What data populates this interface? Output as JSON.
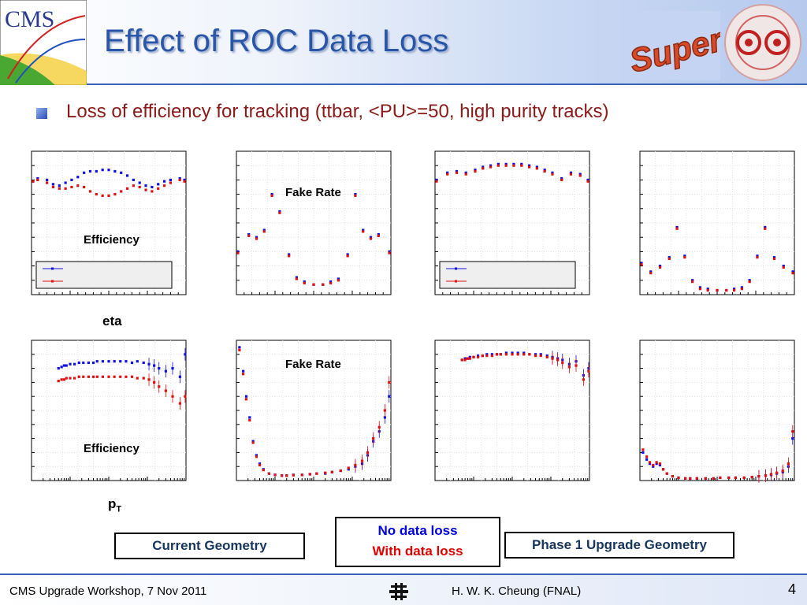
{
  "title": "Effect of ROC Data Loss",
  "subtitle": "Loss of efficiency for tracking (ttbar, <PU>=50, high purity tracks)",
  "labels": {
    "efficiency": "Efficiency",
    "fake_rate": "Fake Rate",
    "eta": "eta",
    "pt_main": "p",
    "pt_sub": "T"
  },
  "boxes": {
    "current": "Current Geometry",
    "phase1": "Phase 1 Upgrade Geometry"
  },
  "legend": {
    "no_loss": "No data loss",
    "with_loss": "With data loss"
  },
  "footer": {
    "left": "CMS Upgrade Workshop, 7 Nov 2011",
    "right": "H. W. K. Cheung (FNAL)",
    "page": "4"
  },
  "logos": {
    "cms": "CMS",
    "super": "Super"
  },
  "colors": {
    "no_loss": "#1010e0",
    "with_loss": "#e01010",
    "title": "#2a56a8",
    "subtitle": "#8b1a1a"
  },
  "chart_data": [
    {
      "id": "cur-eff-eta",
      "type": "scatter",
      "title": "Efficiency",
      "xlabel": "eta",
      "xscale": "linear",
      "xlim": [
        -2.5,
        2.5
      ],
      "ylim": [
        0,
        1
      ],
      "legend": "bottom",
      "series": [
        {
          "name": "No data loss",
          "x": [
            -2.45,
            -2.3,
            -2.0,
            -1.8,
            -1.6,
            -1.4,
            -1.2,
            -1.0,
            -0.8,
            -0.6,
            -0.4,
            -0.2,
            0.0,
            0.2,
            0.4,
            0.6,
            0.8,
            1.0,
            1.2,
            1.4,
            1.6,
            1.8,
            2.0,
            2.3,
            2.45
          ],
          "y": [
            0.79,
            0.81,
            0.8,
            0.77,
            0.76,
            0.78,
            0.8,
            0.82,
            0.85,
            0.86,
            0.86,
            0.87,
            0.87,
            0.86,
            0.85,
            0.83,
            0.8,
            0.78,
            0.76,
            0.75,
            0.77,
            0.79,
            0.8,
            0.81,
            0.8
          ]
        },
        {
          "name": "With data loss",
          "x": [
            -2.45,
            -2.3,
            -2.0,
            -1.8,
            -1.6,
            -1.4,
            -1.2,
            -1.0,
            -0.8,
            -0.6,
            -0.4,
            -0.2,
            0.0,
            0.2,
            0.4,
            0.6,
            0.8,
            1.0,
            1.2,
            1.4,
            1.6,
            1.8,
            2.0,
            2.3,
            2.45
          ],
          "y": [
            0.79,
            0.8,
            0.78,
            0.75,
            0.74,
            0.74,
            0.75,
            0.76,
            0.75,
            0.72,
            0.7,
            0.69,
            0.69,
            0.7,
            0.72,
            0.74,
            0.76,
            0.75,
            0.73,
            0.72,
            0.74,
            0.76,
            0.78,
            0.8,
            0.79
          ]
        }
      ]
    },
    {
      "id": "cur-fake-eta",
      "type": "scatter",
      "title": "Fake Rate",
      "xlabel": "",
      "xscale": "linear",
      "xlim": [
        -2.5,
        2.5
      ],
      "ylim": [
        0,
        1
      ],
      "series": [
        {
          "name": "No data loss",
          "x": [
            -2.45,
            -2.1,
            -1.85,
            -1.6,
            -1.35,
            -1.1,
            -0.8,
            -0.55,
            -0.3,
            0.0,
            0.3,
            0.55,
            0.8,
            1.1,
            1.35,
            1.6,
            1.85,
            2.1,
            2.45
          ],
          "y": [
            0.3,
            0.42,
            0.4,
            0.45,
            0.7,
            0.58,
            0.28,
            0.12,
            0.09,
            0.07,
            0.07,
            0.09,
            0.11,
            0.28,
            0.7,
            0.45,
            0.4,
            0.42,
            0.3
          ]
        },
        {
          "name": "With data loss",
          "x": [
            -2.45,
            -2.1,
            -1.85,
            -1.6,
            -1.35,
            -1.1,
            -0.8,
            -0.55,
            -0.3,
            0.0,
            0.3,
            0.55,
            0.8,
            1.1,
            1.35,
            1.6,
            1.85,
            2.1,
            2.45
          ],
          "y": [
            0.29,
            0.41,
            0.39,
            0.44,
            0.69,
            0.57,
            0.27,
            0.11,
            0.08,
            0.07,
            0.07,
            0.08,
            0.1,
            0.27,
            0.69,
            0.44,
            0.39,
            0.41,
            0.29
          ]
        }
      ]
    },
    {
      "id": "ph1-eff-eta",
      "type": "scatter",
      "title": "",
      "xlabel": "",
      "xscale": "linear",
      "xlim": [
        -2.5,
        2.5
      ],
      "ylim": [
        0,
        1
      ],
      "legend": "bottom",
      "series": [
        {
          "name": "No data loss",
          "x": [
            -2.45,
            -2.1,
            -1.8,
            -1.5,
            -1.2,
            -0.95,
            -0.7,
            -0.45,
            -0.2,
            0.05,
            0.3,
            0.55,
            0.8,
            1.05,
            1.3,
            1.6,
            1.9,
            2.2,
            2.45
          ],
          "y": [
            0.8,
            0.85,
            0.86,
            0.85,
            0.87,
            0.89,
            0.9,
            0.91,
            0.91,
            0.91,
            0.91,
            0.9,
            0.89,
            0.87,
            0.85,
            0.81,
            0.85,
            0.84,
            0.8
          ]
        },
        {
          "name": "With data loss",
          "x": [
            -2.45,
            -2.1,
            -1.8,
            -1.5,
            -1.2,
            -0.95,
            -0.7,
            -0.45,
            -0.2,
            0.05,
            0.3,
            0.55,
            0.8,
            1.05,
            1.3,
            1.6,
            1.9,
            2.2,
            2.45
          ],
          "y": [
            0.79,
            0.84,
            0.85,
            0.84,
            0.86,
            0.88,
            0.89,
            0.9,
            0.9,
            0.9,
            0.9,
            0.89,
            0.88,
            0.86,
            0.84,
            0.8,
            0.84,
            0.83,
            0.79
          ]
        }
      ]
    },
    {
      "id": "ph1-fake-eta",
      "type": "scatter",
      "title": "",
      "xlabel": "",
      "xscale": "linear",
      "xlim": [
        -2.5,
        2.5
      ],
      "ylim": [
        0,
        1
      ],
      "series": [
        {
          "name": "No data loss",
          "x": [
            -2.45,
            -2.15,
            -1.85,
            -1.55,
            -1.3,
            -1.05,
            -0.8,
            -0.55,
            -0.3,
            0.0,
            0.3,
            0.55,
            0.8,
            1.05,
            1.3,
            1.55,
            1.85,
            2.15,
            2.45
          ],
          "y": [
            0.22,
            0.16,
            0.2,
            0.26,
            0.47,
            0.27,
            0.1,
            0.05,
            0.04,
            0.03,
            0.03,
            0.04,
            0.05,
            0.1,
            0.27,
            0.47,
            0.26,
            0.2,
            0.16
          ]
        },
        {
          "name": "With data loss",
          "x": [
            -2.45,
            -2.15,
            -1.85,
            -1.55,
            -1.3,
            -1.05,
            -0.8,
            -0.55,
            -0.3,
            0.0,
            0.3,
            0.55,
            0.8,
            1.05,
            1.3,
            1.55,
            1.85,
            2.15,
            2.45
          ],
          "y": [
            0.21,
            0.15,
            0.19,
            0.25,
            0.46,
            0.26,
            0.09,
            0.04,
            0.03,
            0.03,
            0.03,
            0.03,
            0.04,
            0.09,
            0.26,
            0.46,
            0.25,
            0.19,
            0.15
          ]
        }
      ]
    },
    {
      "id": "cur-eff-pt",
      "type": "scatter",
      "title": "Efficiency",
      "xlabel": "pT",
      "xscale": "log",
      "xlim": [
        0.1,
        1000
      ],
      "ylim": [
        0,
        1
      ],
      "series": [
        {
          "name": "No data loss",
          "x": [
            0.5,
            0.6,
            0.7,
            0.8,
            1,
            1.3,
            1.7,
            2.2,
            3,
            4,
            5,
            7,
            10,
            14,
            20,
            28,
            40,
            55,
            80,
            110,
            150,
            200,
            300,
            450,
            700,
            950
          ],
          "y": [
            0.8,
            0.81,
            0.82,
            0.82,
            0.83,
            0.83,
            0.84,
            0.84,
            0.84,
            0.84,
            0.85,
            0.85,
            0.85,
            0.85,
            0.85,
            0.85,
            0.84,
            0.85,
            0.84,
            0.83,
            0.82,
            0.8,
            0.78,
            0.8,
            0.74,
            0.9
          ]
        },
        {
          "name": "With data loss",
          "x": [
            0.5,
            0.6,
            0.7,
            0.8,
            1,
            1.3,
            1.7,
            2.2,
            3,
            4,
            5,
            7,
            10,
            14,
            20,
            28,
            40,
            55,
            80,
            110,
            150,
            200,
            300,
            450,
            700,
            950
          ],
          "y": [
            0.71,
            0.72,
            0.72,
            0.73,
            0.73,
            0.73,
            0.74,
            0.74,
            0.74,
            0.74,
            0.74,
            0.74,
            0.74,
            0.74,
            0.74,
            0.74,
            0.74,
            0.73,
            0.73,
            0.72,
            0.7,
            0.67,
            0.64,
            0.6,
            0.55,
            0.6
          ]
        }
      ]
    },
    {
      "id": "cur-fake-pt",
      "type": "scatter",
      "title": "Fake Rate",
      "xlabel": "",
      "xscale": "log",
      "xlim": [
        0.1,
        1000
      ],
      "ylim": [
        0,
        1
      ],
      "series": [
        {
          "name": "No data loss",
          "x": [
            0.12,
            0.15,
            0.18,
            0.22,
            0.27,
            0.33,
            0.4,
            0.5,
            0.7,
            1,
            1.5,
            2,
            3,
            5,
            8,
            12,
            20,
            30,
            50,
            80,
            120,
            180,
            250,
            350,
            500,
            700,
            900
          ],
          "y": [
            0.95,
            0.78,
            0.6,
            0.45,
            0.28,
            0.18,
            0.12,
            0.08,
            0.05,
            0.04,
            0.035,
            0.035,
            0.04,
            0.04,
            0.045,
            0.05,
            0.05,
            0.06,
            0.07,
            0.08,
            0.1,
            0.12,
            0.18,
            0.28,
            0.35,
            0.45,
            0.6
          ]
        },
        {
          "name": "With data loss",
          "x": [
            0.12,
            0.15,
            0.18,
            0.22,
            0.27,
            0.33,
            0.4,
            0.5,
            0.7,
            1,
            1.5,
            2,
            3,
            5,
            8,
            12,
            20,
            30,
            50,
            80,
            120,
            180,
            250,
            350,
            500,
            700,
            900
          ],
          "y": [
            0.93,
            0.76,
            0.58,
            0.43,
            0.27,
            0.17,
            0.11,
            0.075,
            0.05,
            0.04,
            0.035,
            0.035,
            0.038,
            0.04,
            0.045,
            0.05,
            0.055,
            0.06,
            0.07,
            0.09,
            0.11,
            0.14,
            0.2,
            0.3,
            0.38,
            0.5,
            0.7
          ]
        }
      ]
    },
    {
      "id": "ph1-eff-pt",
      "type": "scatter",
      "title": "",
      "xlabel": "",
      "xscale": "log",
      "xlim": [
        0.1,
        1000
      ],
      "ylim": [
        0,
        1
      ],
      "series": [
        {
          "name": "No data loss",
          "x": [
            0.5,
            0.6,
            0.7,
            0.8,
            1,
            1.3,
            1.7,
            2.2,
            3,
            4,
            5,
            7,
            10,
            14,
            20,
            28,
            40,
            55,
            80,
            110,
            150,
            200,
            300,
            450,
            700,
            950
          ],
          "y": [
            0.86,
            0.87,
            0.87,
            0.88,
            0.88,
            0.89,
            0.89,
            0.9,
            0.9,
            0.9,
            0.9,
            0.91,
            0.91,
            0.91,
            0.91,
            0.9,
            0.9,
            0.9,
            0.89,
            0.88,
            0.87,
            0.86,
            0.83,
            0.85,
            0.75,
            0.8
          ]
        },
        {
          "name": "With data loss",
          "x": [
            0.5,
            0.6,
            0.7,
            0.8,
            1,
            1.3,
            1.7,
            2.2,
            3,
            4,
            5,
            7,
            10,
            14,
            20,
            28,
            40,
            55,
            80,
            110,
            150,
            200,
            300,
            450,
            700,
            950
          ],
          "y": [
            0.86,
            0.86,
            0.87,
            0.87,
            0.88,
            0.88,
            0.89,
            0.89,
            0.89,
            0.9,
            0.9,
            0.9,
            0.9,
            0.9,
            0.9,
            0.9,
            0.89,
            0.89,
            0.88,
            0.87,
            0.86,
            0.84,
            0.81,
            0.82,
            0.72,
            0.78
          ]
        }
      ]
    },
    {
      "id": "ph1-fake-pt",
      "type": "scatter",
      "title": "",
      "xlabel": "",
      "xscale": "log",
      "xlim": [
        0.1,
        1000
      ],
      "ylim": [
        0,
        1
      ],
      "series": [
        {
          "name": "No data loss",
          "x": [
            0.12,
            0.15,
            0.18,
            0.22,
            0.27,
            0.33,
            0.4,
            0.5,
            0.7,
            1,
            1.5,
            2,
            3,
            5,
            8,
            12,
            20,
            30,
            50,
            80,
            120,
            180,
            250,
            350,
            500,
            700,
            900
          ],
          "y": [
            0.2,
            0.15,
            0.12,
            0.1,
            0.12,
            0.11,
            0.08,
            0.05,
            0.03,
            0.02,
            0.015,
            0.015,
            0.015,
            0.015,
            0.015,
            0.02,
            0.02,
            0.02,
            0.02,
            0.025,
            0.03,
            0.035,
            0.04,
            0.05,
            0.06,
            0.1,
            0.3
          ]
        },
        {
          "name": "With data loss",
          "x": [
            0.12,
            0.15,
            0.18,
            0.22,
            0.27,
            0.33,
            0.4,
            0.5,
            0.7,
            1,
            1.5,
            2,
            3,
            5,
            8,
            12,
            20,
            30,
            50,
            80,
            120,
            180,
            250,
            350,
            500,
            700,
            900
          ],
          "y": [
            0.22,
            0.17,
            0.13,
            0.11,
            0.13,
            0.12,
            0.08,
            0.05,
            0.03,
            0.02,
            0.015,
            0.015,
            0.015,
            0.015,
            0.015,
            0.02,
            0.02,
            0.02,
            0.02,
            0.025,
            0.03,
            0.035,
            0.045,
            0.055,
            0.07,
            0.12,
            0.35
          ]
        }
      ]
    }
  ]
}
